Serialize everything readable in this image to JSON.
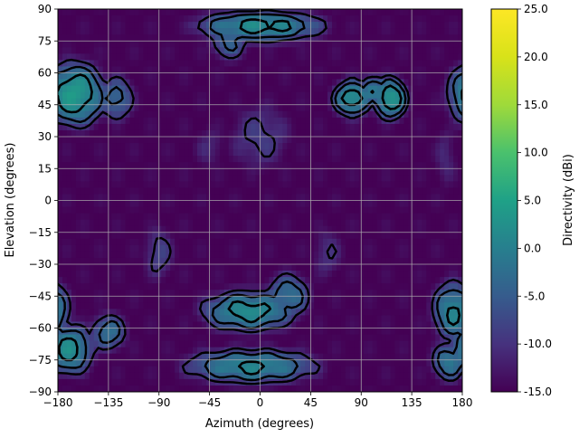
{
  "chart_data": {
    "type": "heatmap",
    "title": "",
    "xlabel": "Azimuth (degrees)",
    "ylabel": "Elevation (degrees)",
    "xlim": [
      -180,
      180
    ],
    "ylim": [
      -90,
      90
    ],
    "xticks": [
      "−180",
      "−135",
      "−90",
      "−45",
      "0",
      "45",
      "90",
      "135",
      "180"
    ],
    "xtick_values": [
      -180,
      -135,
      -90,
      -45,
      0,
      45,
      90,
      135,
      180
    ],
    "yticks": [
      "−90",
      "−75",
      "−60",
      "−45",
      "−30",
      "−15",
      "0",
      "15",
      "30",
      "45",
      "60",
      "75",
      "90"
    ],
    "ytick_values": [
      -90,
      -75,
      -60,
      -45,
      -30,
      -15,
      0,
      15,
      30,
      45,
      60,
      75,
      90
    ],
    "grid": true,
    "colormap": "viridis",
    "colorbar": {
      "label": "Directivity (dBi)",
      "range": [
        -15,
        25
      ],
      "ticks": [
        "-15.0",
        "-10.0",
        "-5.0",
        "0.0",
        "5.0",
        "10.0",
        "15.0",
        "20.0",
        "25.0"
      ],
      "tick_values": [
        -15,
        -10,
        -5,
        0,
        5,
        10,
        15,
        20,
        25
      ]
    },
    "contour_levels_dbi": [
      -10,
      -5,
      0
    ],
    "lobes": [
      {
        "az": 0,
        "el": 82,
        "peak": 2,
        "saz": 48,
        "sel": 6
      },
      {
        "az": -165,
        "el": 50,
        "peak": 4,
        "saz": 22,
        "sel": 12
      },
      {
        "az": -128,
        "el": 48,
        "peak": -3,
        "saz": 15,
        "sel": 10
      },
      {
        "az": 82,
        "el": 48,
        "peak": 3,
        "saz": 14,
        "sel": 7
      },
      {
        "az": 116,
        "el": 48,
        "peak": 4,
        "saz": 12,
        "sel": 8
      },
      {
        "az": 100,
        "el": 52,
        "peak": 0,
        "saz": 10,
        "sel": 6
      },
      {
        "az": -28,
        "el": 74,
        "peak": -4,
        "saz": 16,
        "sel": 8
      },
      {
        "az": -10,
        "el": -52,
        "peak": 2,
        "saz": 35,
        "sel": 8
      },
      {
        "az": 25,
        "el": -45,
        "peak": -2,
        "saz": 18,
        "sel": 10
      },
      {
        "az": -8,
        "el": -78,
        "peak": 1,
        "saz": 50,
        "sel": 7
      },
      {
        "az": -170,
        "el": -70,
        "peak": 2,
        "saz": 18,
        "sel": 10
      },
      {
        "az": -135,
        "el": -62,
        "peak": -2,
        "saz": 15,
        "sel": 8
      },
      {
        "az": 172,
        "el": -52,
        "peak": 1,
        "saz": 16,
        "sel": 12
      },
      {
        "az": 168,
        "el": -76,
        "peak": -1,
        "saz": 14,
        "sel": 8
      },
      {
        "az": -90,
        "el": -25,
        "peak": -8,
        "saz": 16,
        "sel": 15
      },
      {
        "az": 0,
        "el": 30,
        "peak": -9,
        "saz": 35,
        "sel": 20
      },
      {
        "az": 165,
        "el": 20,
        "peak": -11,
        "saz": 14,
        "sel": 22
      },
      {
        "az": -45,
        "el": 25,
        "peak": -11,
        "saz": 20,
        "sel": 14
      },
      {
        "az": 60,
        "el": -25,
        "peak": -10,
        "saz": 18,
        "sel": 16
      }
    ]
  }
}
